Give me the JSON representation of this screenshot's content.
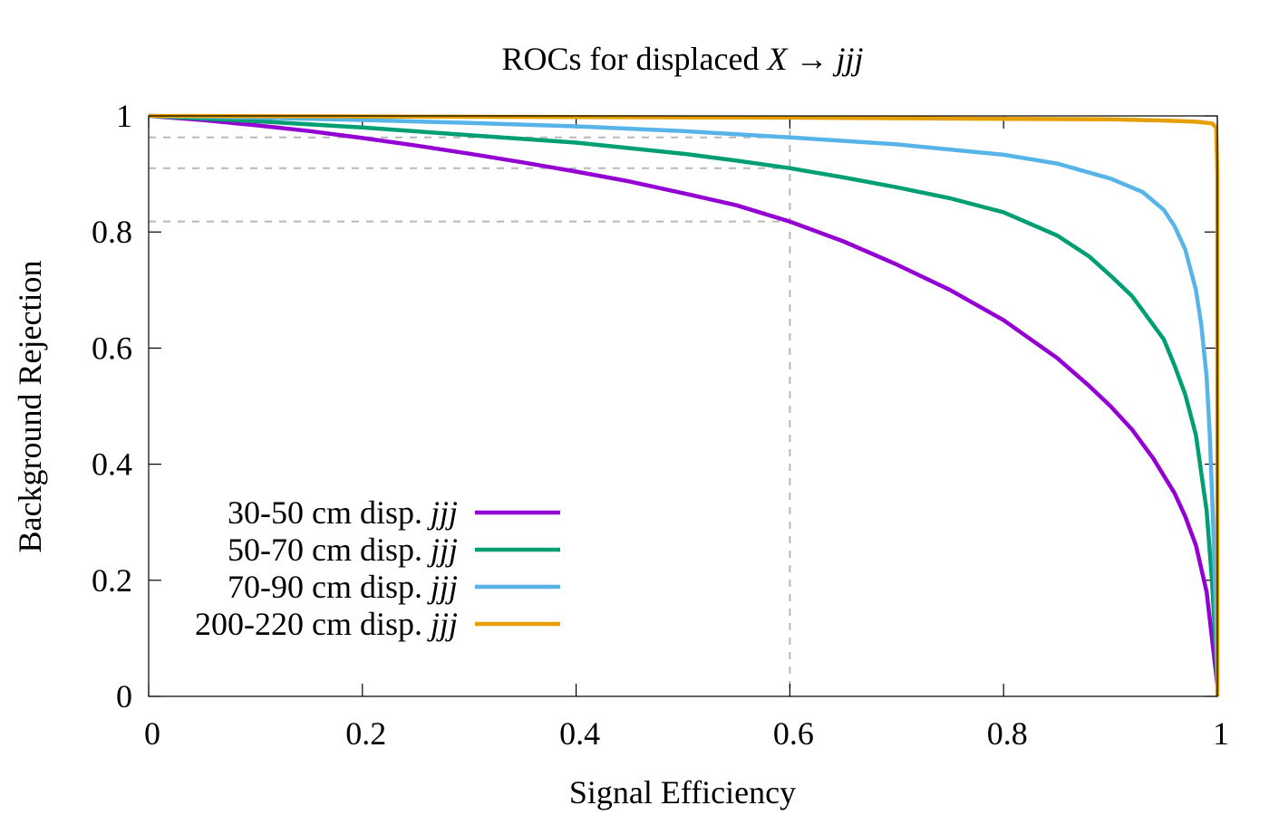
{
  "chart_data": {
    "type": "line",
    "title_prefix": "ROCs for displaced ",
    "title_math": "X → jjj",
    "title": "ROCs for displaced X → jjj",
    "xlabel": "Signal Efficiency",
    "ylabel": "Background Rejection",
    "xlim": [
      0,
      1
    ],
    "ylim": [
      0,
      1
    ],
    "xticks": [
      "0",
      "0.2",
      "0.4",
      "0.6",
      "0.8",
      "1"
    ],
    "yticks": [
      "0",
      "0.2",
      "0.4",
      "0.6",
      "0.8",
      "1"
    ],
    "xtick_values": [
      0,
      0.2,
      0.4,
      0.6,
      0.8,
      1
    ],
    "ytick_values": [
      0,
      0.2,
      0.4,
      0.6,
      0.8,
      1
    ],
    "grid": false,
    "legend_position": "bottom-left",
    "reference_lines": {
      "x": 0.6,
      "y": [
        0.818,
        0.91,
        0.963
      ]
    },
    "series": [
      {
        "name": "30-50 cm disp. jjj",
        "label_text": "30-50 cm disp. ",
        "label_math": "jjj",
        "color": "#9400d3",
        "x": [
          0,
          0.05,
          0.1,
          0.15,
          0.2,
          0.25,
          0.3,
          0.35,
          0.4,
          0.45,
          0.5,
          0.55,
          0.6,
          0.65,
          0.7,
          0.75,
          0.8,
          0.85,
          0.88,
          0.9,
          0.92,
          0.94,
          0.96,
          0.97,
          0.98,
          0.99,
          0.995,
          1.0
        ],
        "y": [
          1.0,
          0.993,
          0.984,
          0.974,
          0.962,
          0.949,
          0.935,
          0.92,
          0.904,
          0.887,
          0.867,
          0.846,
          0.818,
          0.784,
          0.744,
          0.7,
          0.648,
          0.583,
          0.535,
          0.5,
          0.46,
          0.41,
          0.35,
          0.31,
          0.26,
          0.18,
          0.1,
          0.02
        ]
      },
      {
        "name": "50-70 cm disp. jjj",
        "label_text": "50-70 cm disp. ",
        "label_math": "jjj",
        "color": "#009e73",
        "x": [
          0,
          0.1,
          0.2,
          0.3,
          0.4,
          0.5,
          0.55,
          0.6,
          0.65,
          0.7,
          0.75,
          0.8,
          0.85,
          0.88,
          0.9,
          0.92,
          0.94,
          0.95,
          0.96,
          0.97,
          0.98,
          0.99,
          0.995,
          1.0
        ],
        "y": [
          1.0,
          0.991,
          0.98,
          0.967,
          0.954,
          0.935,
          0.923,
          0.91,
          0.894,
          0.877,
          0.858,
          0.834,
          0.794,
          0.758,
          0.725,
          0.69,
          0.64,
          0.615,
          0.57,
          0.52,
          0.45,
          0.32,
          0.2,
          0.03
        ]
      },
      {
        "name": "70-90 cm disp. jjj",
        "label_text": "70-90 cm disp. ",
        "label_math": "jjj",
        "color": "#56b4e9",
        "x": [
          0,
          0.1,
          0.2,
          0.3,
          0.4,
          0.5,
          0.6,
          0.7,
          0.8,
          0.85,
          0.9,
          0.93,
          0.95,
          0.96,
          0.97,
          0.98,
          0.985,
          0.99,
          0.993,
          0.996,
          1.0
        ],
        "y": [
          1.0,
          0.997,
          0.993,
          0.988,
          0.982,
          0.974,
          0.963,
          0.951,
          0.933,
          0.918,
          0.892,
          0.869,
          0.838,
          0.81,
          0.77,
          0.7,
          0.64,
          0.55,
          0.45,
          0.3,
          0.05
        ]
      },
      {
        "name": "200-220 cm disp. jjj",
        "label_text": "200-220 cm disp. ",
        "label_math": "jjj",
        "color": "#e69f00",
        "x": [
          0,
          0.2,
          0.4,
          0.6,
          0.8,
          0.9,
          0.95,
          0.98,
          0.995,
          0.999,
          1.0,
          1.0
        ],
        "y": [
          1.0,
          0.999,
          0.998,
          0.997,
          0.995,
          0.994,
          0.992,
          0.99,
          0.987,
          0.98,
          0.9,
          0.0
        ]
      }
    ]
  }
}
